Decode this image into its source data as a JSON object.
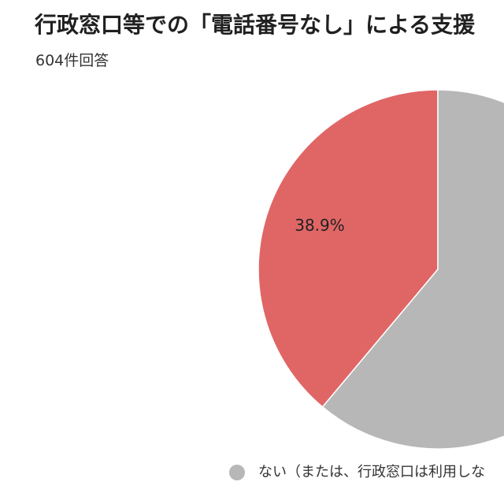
{
  "chart_data": {
    "type": "pie",
    "title": "行政窓口等での「電話番号なし」による支援",
    "subtitle": "604件回答",
    "slices": [
      {
        "label": "",
        "value": 38.9,
        "value_label": "38.9%",
        "color": "#e06666"
      },
      {
        "label": "ない（または、行政窓口は利用しな",
        "value": 61.1,
        "value_label": "",
        "color": "#b7b7b7"
      }
    ],
    "legend": [
      {
        "label": "ない（または、行政窓口は利用しな",
        "color": "#b7b7b7"
      }
    ],
    "legend_position": "bottom"
  }
}
